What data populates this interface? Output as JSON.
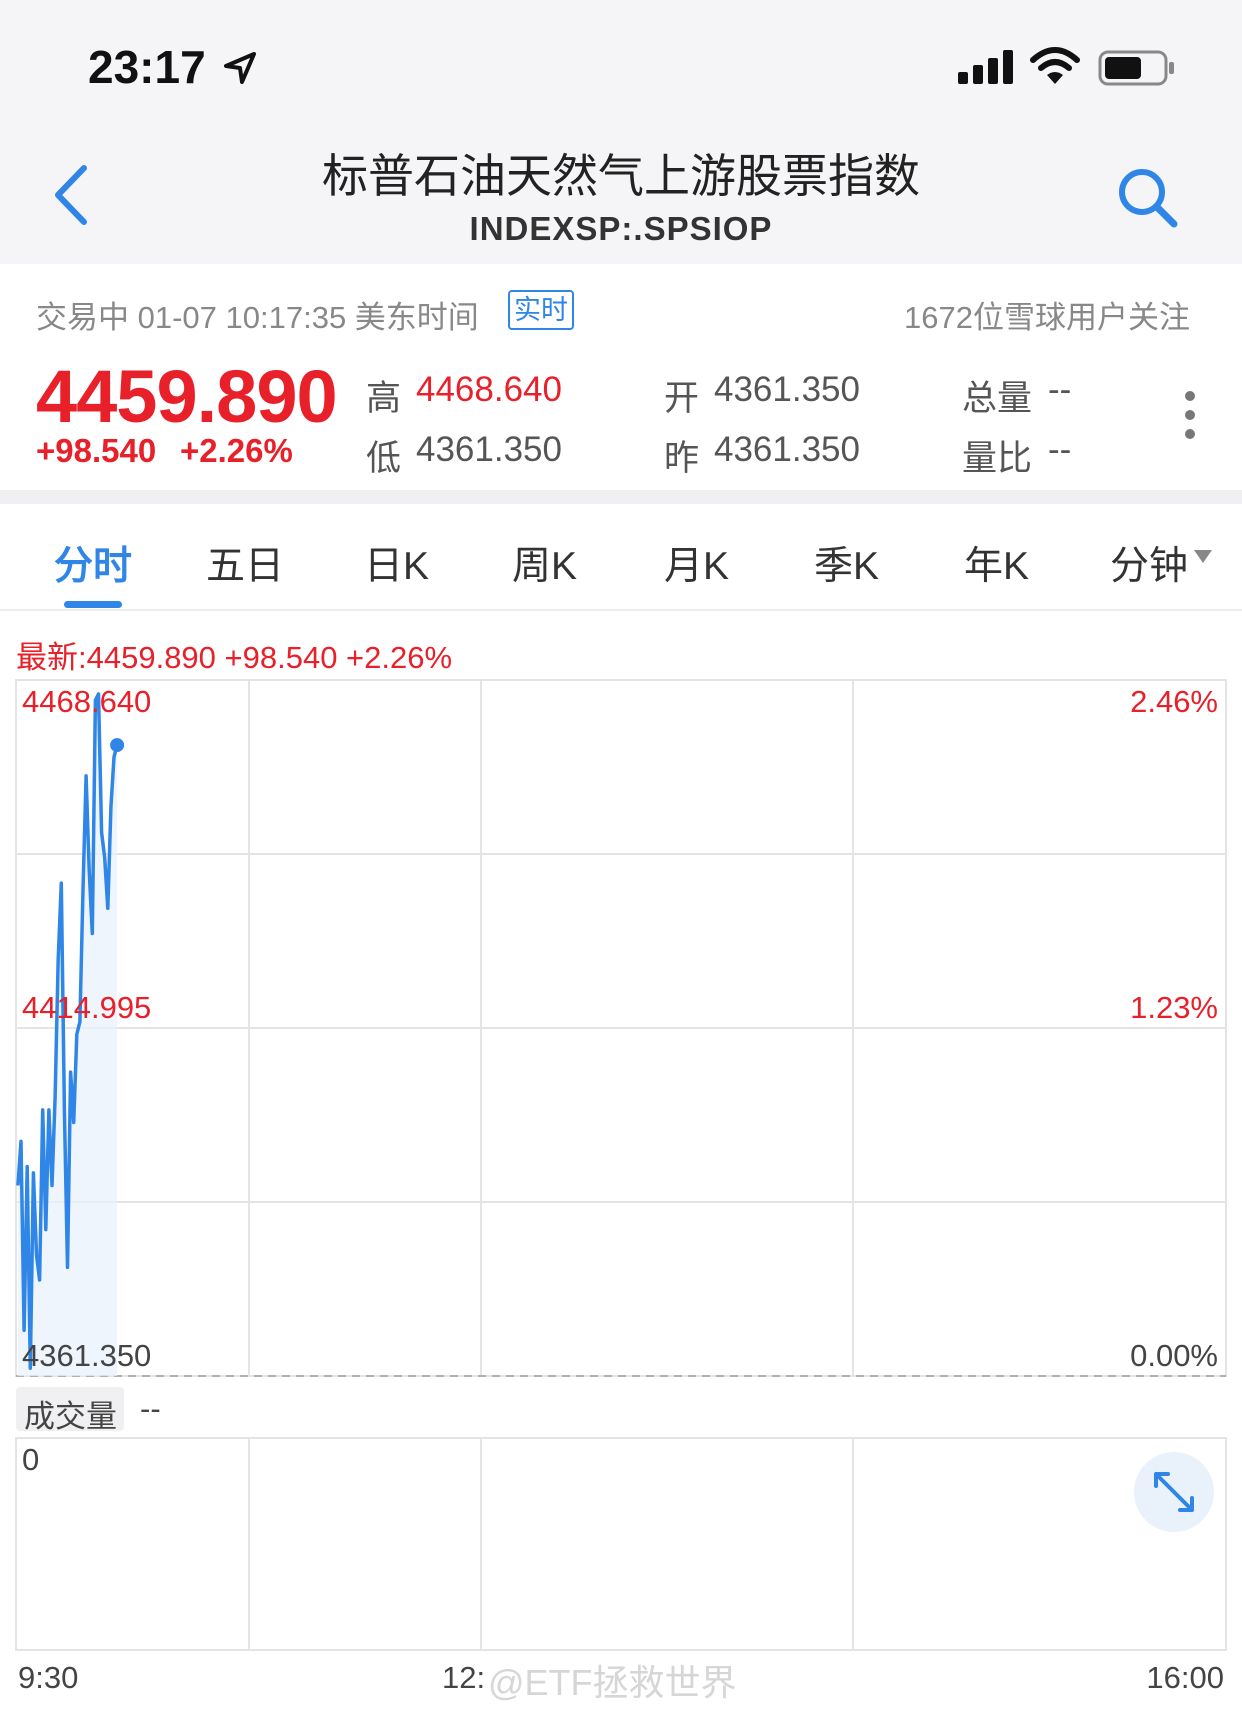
{
  "status_bar": {
    "time": "23:17"
  },
  "nav": {
    "title": "标普石油天然气上游股票指数",
    "code": "INDEXSP:.SPSIOP"
  },
  "quote": {
    "status_text": "交易中 01-07 10:17:35 美东时间",
    "realtime_badge": "实时",
    "followers": "1672位雪球用户关注",
    "price": "4459.890",
    "change": "+98.540",
    "change_pct": "+2.26%",
    "high_label": "高",
    "high": "4468.640",
    "low_label": "低",
    "low": "4361.350",
    "open_label": "开",
    "open": "4361.350",
    "prev_label": "昨",
    "prev": "4361.350",
    "volume_label": "总量",
    "volume": "--",
    "ratio_label": "量比",
    "ratio": "--"
  },
  "tabs": [
    "分时",
    "五日",
    "日K",
    "周K",
    "月K",
    "季K",
    "年K",
    "分钟"
  ],
  "latest_line": "最新:4459.890  +98.540  +2.26%",
  "volume_panel": {
    "label": "成交量",
    "value": "--",
    "zero": "0"
  },
  "time_axis": {
    "start": "9:30",
    "mid": "12:",
    "end": "16:00"
  },
  "watermark": "@ETF拯救世界",
  "colors": {
    "up": "#e8202a",
    "accent": "#2f86e6"
  },
  "chart_data": {
    "type": "line",
    "title": "",
    "y_left_ticks": [
      "4468.640",
      "4414.995",
      "4361.350"
    ],
    "y_right_ticks": [
      "2.46%",
      "1.23%",
      "0.00%"
    ],
    "ylim": [
      4361.35,
      4468.64
    ],
    "x_range": [
      "9:30",
      "16:00"
    ],
    "series": [
      {
        "values": [
          4390,
          4397,
          4367,
          4393,
          4361,
          4392,
          4379,
          4375,
          4402,
          4383,
          4402,
          4390,
          4404,
          4426,
          4438,
          4402,
          4377,
          4408,
          4400,
          4414,
          4416,
          4437,
          4455,
          4440,
          4430,
          4467,
          4468,
          4446,
          4442,
          4434,
          4450,
          4458,
          4459.89
        ]
      }
    ]
  }
}
